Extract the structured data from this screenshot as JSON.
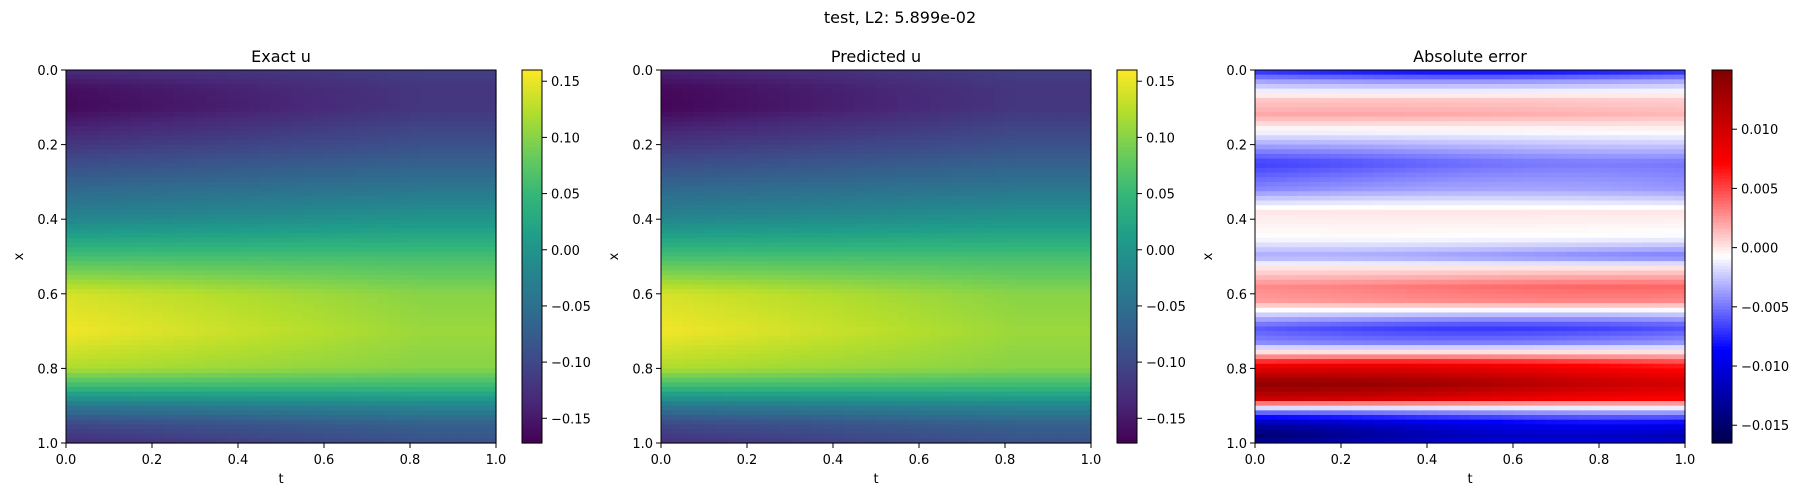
{
  "figure": {
    "suptitle": "test, L2: 5.899e-02"
  },
  "chart_data": [
    {
      "type": "heatmap",
      "title": "Exact u",
      "xlabel": "t",
      "ylabel": "x",
      "xlim": [
        0,
        1
      ],
      "ylim": [
        1,
        0
      ],
      "y_axis_inverted": true,
      "xticks": [
        "0.0",
        "0.2",
        "0.4",
        "0.6",
        "0.8",
        "1.0"
      ],
      "yticks": [
        "0.0",
        "0.2",
        "0.4",
        "0.6",
        "0.8",
        "1.0"
      ],
      "colormap": "viridis",
      "colorbar": {
        "range": [
          -0.172,
          0.16
        ],
        "ticks": [
          0.15,
          0.1,
          0.05,
          0.0,
          -0.05,
          -0.1,
          -0.15
        ],
        "tick_labels": [
          "0.15",
          "0.10",
          "0.05",
          "0.00",
          "−0.05",
          "−0.10",
          "−0.15"
        ]
      },
      "profile_x": [
        0.0,
        0.05,
        0.1,
        0.2,
        0.3,
        0.4,
        0.5,
        0.6,
        0.7,
        0.8,
        0.85,
        0.9,
        0.95,
        1.0
      ],
      "profile_u_at_t0": [
        -0.13,
        -0.16,
        -0.165,
        -0.12,
        -0.07,
        -0.02,
        0.06,
        0.14,
        0.155,
        0.12,
        0.05,
        -0.04,
        -0.1,
        -0.13
      ],
      "profile_u_at_t1": [
        -0.11,
        -0.12,
        -0.12,
        -0.09,
        -0.05,
        0.0,
        0.06,
        0.1,
        0.11,
        0.1,
        0.05,
        -0.02,
        -0.07,
        -0.09
      ]
    },
    {
      "type": "heatmap",
      "title": "Predicted u",
      "xlabel": "t",
      "ylabel": "x",
      "xlim": [
        0,
        1
      ],
      "ylim": [
        1,
        0
      ],
      "y_axis_inverted": true,
      "xticks": [
        "0.0",
        "0.2",
        "0.4",
        "0.6",
        "0.8",
        "1.0"
      ],
      "yticks": [
        "0.0",
        "0.2",
        "0.4",
        "0.6",
        "0.8",
        "1.0"
      ],
      "colormap": "viridis",
      "colorbar": {
        "range": [
          -0.172,
          0.16
        ],
        "ticks": [
          0.15,
          0.1,
          0.05,
          0.0,
          -0.05,
          -0.1,
          -0.15
        ],
        "tick_labels": [
          "0.15",
          "0.10",
          "0.05",
          "0.00",
          "−0.05",
          "−0.10",
          "−0.15"
        ]
      },
      "profile_x": [
        0.0,
        0.05,
        0.1,
        0.2,
        0.3,
        0.4,
        0.5,
        0.6,
        0.7,
        0.8,
        0.85,
        0.9,
        0.95,
        1.0
      ],
      "profile_u_at_t0": [
        -0.14,
        -0.165,
        -0.168,
        -0.12,
        -0.07,
        -0.02,
        0.06,
        0.14,
        0.155,
        0.12,
        0.05,
        -0.04,
        -0.1,
        -0.125
      ],
      "profile_u_at_t1": [
        -0.11,
        -0.12,
        -0.12,
        -0.09,
        -0.05,
        0.0,
        0.06,
        0.1,
        0.11,
        0.1,
        0.05,
        -0.02,
        -0.07,
        -0.09
      ]
    },
    {
      "type": "heatmap",
      "title": "Absolute error",
      "xlabel": "t",
      "ylabel": "x",
      "xlim": [
        0,
        1
      ],
      "ylim": [
        1,
        0
      ],
      "y_axis_inverted": true,
      "xticks": [
        "0.0",
        "0.2",
        "0.4",
        "0.6",
        "0.8",
        "1.0"
      ],
      "yticks": [
        "0.0",
        "0.2",
        "0.4",
        "0.6",
        "0.8",
        "1.0"
      ],
      "colormap": "seismic",
      "colorbar": {
        "range": [
          -0.0165,
          0.015
        ],
        "ticks": [
          0.01,
          0.005,
          0.0,
          -0.005,
          -0.01,
          -0.015
        ],
        "tick_labels": [
          "0.010",
          "0.005",
          "0.000",
          "−0.005",
          "−0.010",
          "−0.015"
        ]
      },
      "bands_x": [
        0.0,
        0.03,
        0.08,
        0.12,
        0.18,
        0.25,
        0.32,
        0.38,
        0.45,
        0.5,
        0.53,
        0.58,
        0.62,
        0.65,
        0.69,
        0.73,
        0.76,
        0.79,
        0.84,
        0.88,
        0.9,
        0.92,
        0.95,
        0.98,
        1.0
      ],
      "bands_err": [
        -0.009,
        -0.004,
        0.001,
        0.002,
        -0.002,
        -0.007,
        -0.005,
        0.0,
        -0.001,
        -0.005,
        0.0,
        0.004,
        0.003,
        -0.002,
        -0.007,
        -0.005,
        0.001,
        0.008,
        0.014,
        0.011,
        0.0,
        -0.006,
        -0.013,
        -0.016,
        -0.014
      ]
    }
  ]
}
